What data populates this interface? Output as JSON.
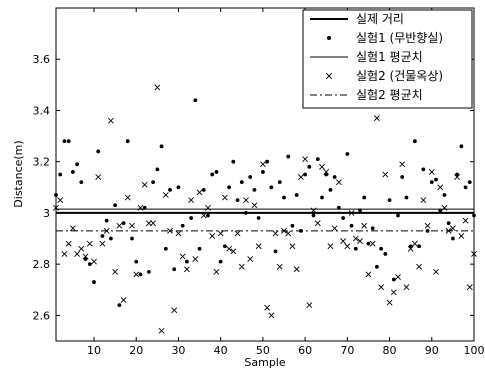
{
  "chart_data": {
    "type": "scatter",
    "xlabel": "Sample",
    "ylabel": "Distance(m)",
    "xlim": [
      1,
      100
    ],
    "ylim": [
      2.5,
      3.8
    ],
    "xticks": [
      10,
      20,
      30,
      40,
      50,
      60,
      70,
      80,
      90,
      100
    ],
    "yticks": [
      2.6,
      2.8,
      3,
      3.2,
      3.4,
      3.6
    ],
    "grid": false,
    "legend_position": "top-right",
    "legend": [
      {
        "label": "실제 거리",
        "style": "thick-solid-line"
      },
      {
        "label": "실험1 (무반향실)",
        "style": "dot-marker"
      },
      {
        "label": "실험1 평균치",
        "style": "thin-solid-line"
      },
      {
        "label": "실험2 (건물옥상)",
        "style": "x-marker"
      },
      {
        "label": "실험2 평균치",
        "style": "dash-dot-line"
      }
    ],
    "reference_lines": [
      {
        "name": "실제 거리",
        "y": 3.0
      },
      {
        "name": "실험1 평균치",
        "y": 3.015
      },
      {
        "name": "실험2 평균치",
        "y": 2.93
      }
    ],
    "series": [
      {
        "name": "실험1 (무반향실)",
        "marker": "dot",
        "x": [
          1,
          2,
          3,
          4,
          5,
          6,
          7,
          8,
          9,
          10,
          11,
          12,
          13,
          14,
          15,
          16,
          17,
          18,
          19,
          20,
          21,
          22,
          23,
          24,
          25,
          26,
          27,
          28,
          29,
          30,
          31,
          32,
          33,
          34,
          35,
          36,
          37,
          38,
          39,
          40,
          41,
          42,
          43,
          44,
          45,
          46,
          47,
          48,
          49,
          50,
          51,
          52,
          53,
          54,
          55,
          56,
          57,
          58,
          59,
          60,
          61,
          62,
          63,
          64,
          65,
          66,
          67,
          68,
          69,
          70,
          71,
          72,
          73,
          74,
          75,
          76,
          77,
          78,
          79,
          80,
          81,
          82,
          83,
          84,
          85,
          86,
          87,
          88,
          89,
          90,
          91,
          92,
          93,
          94,
          95,
          96,
          97,
          98,
          99,
          100
        ],
        "y": [
          3.07,
          3.15,
          3.28,
          3.28,
          3.16,
          3.19,
          3.12,
          2.82,
          2.8,
          2.73,
          3.24,
          2.91,
          2.97,
          2.9,
          3.03,
          2.64,
          2.96,
          3.28,
          2.9,
          2.81,
          2.76,
          3.02,
          2.77,
          3.12,
          3.17,
          3.26,
          2.86,
          3.09,
          2.78,
          3.1,
          2.95,
          2.81,
          2.98,
          3.44,
          2.86,
          3.09,
          2.99,
          3.15,
          3.16,
          2.81,
          2.87,
          3.1,
          3.2,
          3.05,
          3.12,
          3.0,
          3.14,
          3.09,
          2.98,
          3.16,
          3.2,
          3.1,
          2.85,
          3.12,
          3.06,
          3.22,
          2.95,
          3.07,
          2.93,
          3.15,
          3.18,
          2.99,
          3.21,
          3.06,
          3.15,
          3.09,
          3.14,
          3.02,
          2.98,
          3.23,
          2.95,
          2.86,
          3.01,
          3.06,
          2.88,
          2.94,
          2.79,
          2.86,
          2.84,
          3.05,
          2.74,
          2.99,
          3.14,
          3.06,
          2.87,
          3.28,
          2.87,
          3.17,
          2.93,
          3.12,
          3.13,
          3.01,
          3.07,
          2.96,
          2.9,
          3.15,
          3.26,
          3.1,
          3.12,
          2.99
        ]
      },
      {
        "name": "실험2 (건물옥상)",
        "marker": "x",
        "x": [
          1,
          2,
          3,
          4,
          5,
          6,
          7,
          8,
          9,
          10,
          11,
          12,
          13,
          14,
          15,
          16,
          17,
          18,
          19,
          20,
          21,
          22,
          23,
          24,
          25,
          26,
          27,
          28,
          29,
          30,
          31,
          32,
          33,
          34,
          35,
          36,
          37,
          38,
          39,
          40,
          41,
          42,
          43,
          44,
          45,
          46,
          47,
          48,
          49,
          50,
          51,
          52,
          53,
          54,
          55,
          56,
          57,
          58,
          59,
          60,
          61,
          62,
          63,
          64,
          65,
          66,
          67,
          68,
          69,
          70,
          71,
          72,
          73,
          74,
          75,
          76,
          77,
          78,
          79,
          80,
          81,
          82,
          83,
          84,
          85,
          86,
          87,
          88,
          89,
          90,
          91,
          92,
          93,
          94,
          95,
          96,
          97,
          98,
          99,
          100
        ],
        "y": [
          3.02,
          3.05,
          2.84,
          2.88,
          2.94,
          2.84,
          2.86,
          2.83,
          2.88,
          2.81,
          3.14,
          2.88,
          2.93,
          3.36,
          2.77,
          2.95,
          2.66,
          3.06,
          2.95,
          2.76,
          3.02,
          3.11,
          2.96,
          2.96,
          3.49,
          2.54,
          3.07,
          2.93,
          2.62,
          2.92,
          2.83,
          2.78,
          3.05,
          2.82,
          3.08,
          2.99,
          3.02,
          2.91,
          2.77,
          2.92,
          3.06,
          2.86,
          2.85,
          2.92,
          2.79,
          3.05,
          2.82,
          3.03,
          2.87,
          3.19,
          2.63,
          2.6,
          2.92,
          2.79,
          2.93,
          2.92,
          2.87,
          2.78,
          3.14,
          3.21,
          2.64,
          3.01,
          2.96,
          3.18,
          3.16,
          2.87,
          2.94,
          3.12,
          2.89,
          2.87,
          3.0,
          2.9,
          2.89,
          2.95,
          2.76,
          2.88,
          3.37,
          2.71,
          3.15,
          2.65,
          2.69,
          2.75,
          3.19,
          2.71,
          2.86,
          2.88,
          2.79,
          3.05,
          2.95,
          3.16,
          2.77,
          3.1,
          3.02,
          2.93,
          2.94,
          3.14,
          2.91,
          2.97,
          2.71,
          2.84
        ]
      }
    ]
  }
}
